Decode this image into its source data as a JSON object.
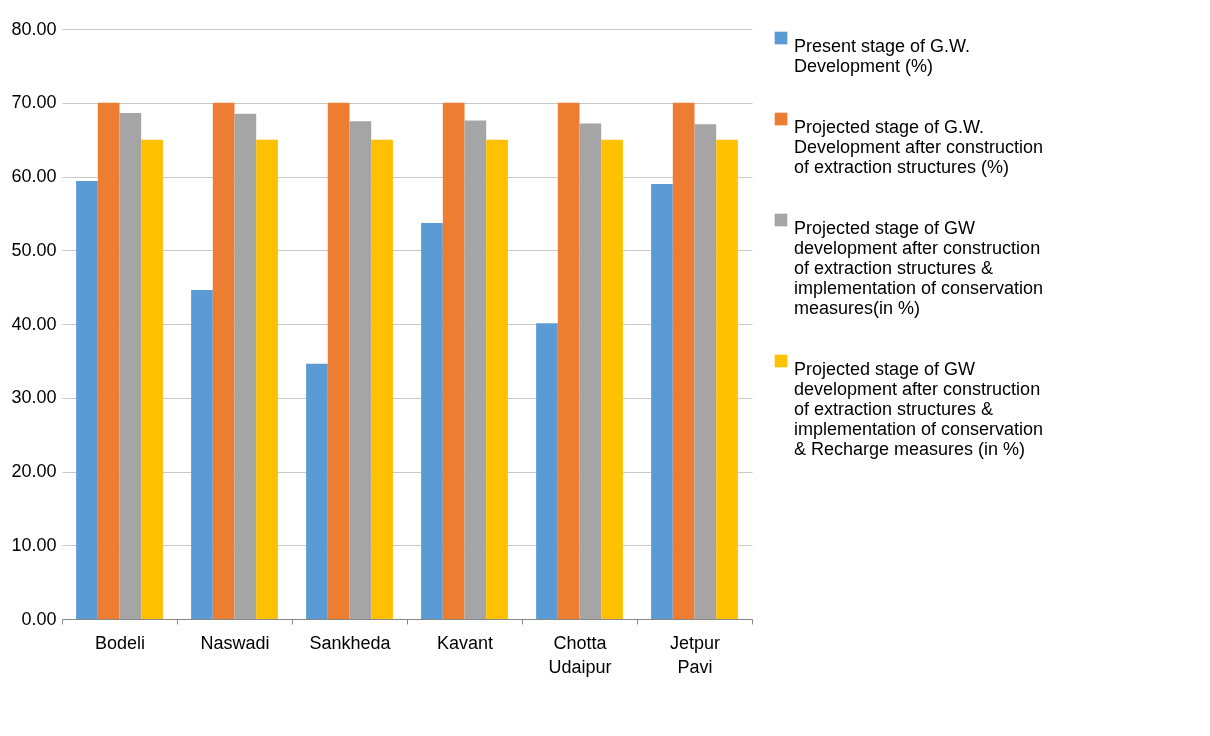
{
  "chart_data": {
    "type": "bar",
    "categories": [
      "Bodeli",
      "Naswadi",
      "Sankheda",
      "Kavant",
      "Chotta Udaipur",
      "Jetpur Pavi"
    ],
    "series": [
      {
        "name": "Present stage of G.W. Development (%)",
        "color": "#5b9bd5",
        "values": [
          59.4,
          44.6,
          34.6,
          53.7,
          40.1,
          59.0
        ]
      },
      {
        "name": "Projected stage of G.W. Development after construction of extraction structures (%)",
        "color": "#ed7d31",
        "values": [
          70,
          70,
          70,
          70,
          70,
          70
        ]
      },
      {
        "name": "Projected stage of GW development after construction of extraction structures & implementation of conservation measures(in %)",
        "color": "#a5a5a5",
        "values": [
          68.6,
          68.5,
          67.5,
          67.6,
          67.2,
          67.1
        ]
      },
      {
        "name": "Projected stage of GW development after construction of extraction structures & implementation of conservation & Recharge measures (in %)",
        "color": "#ffc000",
        "values": [
          65,
          65,
          65,
          65,
          65,
          65
        ]
      }
    ],
    "ylim": [
      0,
      80
    ],
    "yticks": [
      {
        "value": 0,
        "label": "0.00"
      },
      {
        "value": 10,
        "label": "10.00"
      },
      {
        "value": 20,
        "label": "20.00"
      },
      {
        "value": 30,
        "label": "30.00"
      },
      {
        "value": 40,
        "label": "40.00"
      },
      {
        "value": 50,
        "label": "50.00"
      },
      {
        "value": 60,
        "label": "60.00"
      },
      {
        "value": 70,
        "label": "70.00"
      },
      {
        "value": 80,
        "label": "80.00"
      }
    ],
    "grid": "y",
    "legend": "right"
  }
}
